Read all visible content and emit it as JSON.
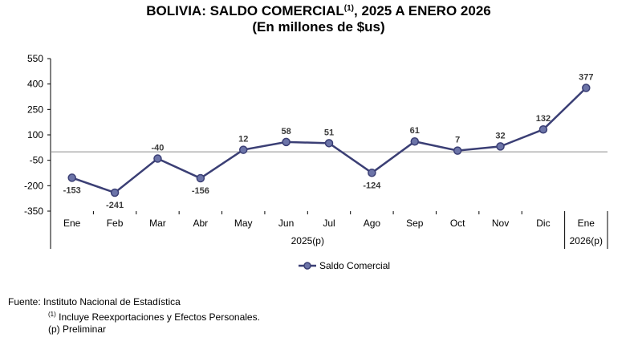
{
  "chart_data": {
    "type": "line",
    "title_main": "BOLIVIA: SALDO COMERCIAL",
    "title_sup": "(1)",
    "title_rest": ", 2025 A ENERO 2026",
    "subtitle": "(En millones de $us)",
    "categories": [
      "Ene",
      "Feb",
      "Mar",
      "Abr",
      "May",
      "Jun",
      "Jul",
      "Ago",
      "Sep",
      "Oct",
      "Nov",
      "Dic",
      "Ene"
    ],
    "group_labels": [
      "2025(p)",
      "2026(p)"
    ],
    "series": [
      {
        "name": "Saldo Comercial",
        "values": [
          -153,
          -241,
          -40,
          -156,
          12,
          58,
          51,
          -124,
          61,
          7,
          32,
          132,
          377
        ],
        "color": "#3b3f75",
        "marker_fill": "#6c74a8"
      }
    ],
    "y_ticks": [
      550,
      400,
      250,
      100,
      -50,
      -200,
      -350
    ],
    "ylim": [
      -350,
      550
    ],
    "zero_line": 0,
    "legend": "bottom"
  },
  "footer": {
    "source": "Fuente: Instituto Nacional de Estadística",
    "note1_sup": "(1)",
    "note1": " Incluye Reexportaciones y Efectos Personales.",
    "note2": "(p) Preliminar"
  }
}
